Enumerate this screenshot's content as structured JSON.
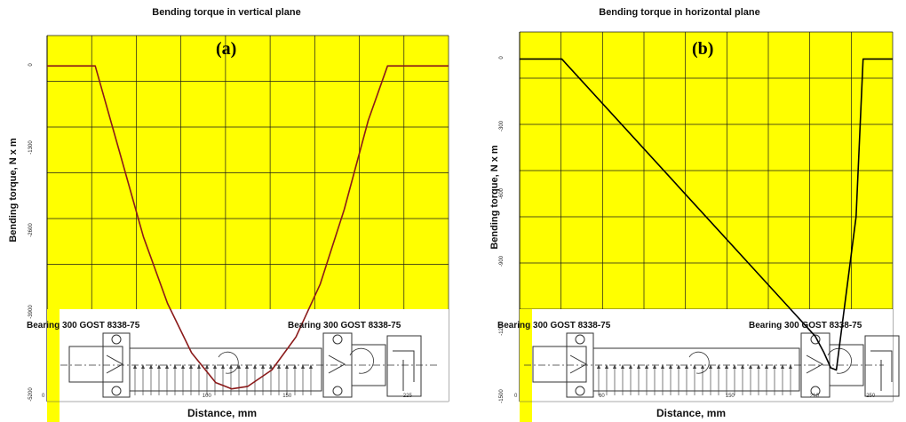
{
  "chart_data": [
    {
      "type": "line",
      "panel_tag": "(a)",
      "title": "Bending torque in vertical plane",
      "ylabel": "Bending torque, N x m",
      "xlabel": "Distance, mm",
      "y_ticks": [
        "0",
        "-1300",
        "-2600",
        "-3900",
        "-5200"
      ],
      "y_tick_values": [
        0,
        -1300,
        -2600,
        -3900,
        -5200
      ],
      "x_ticks": [
        "0",
        "100",
        "150",
        "225"
      ],
      "x_tick_values": [
        0,
        100,
        150,
        225
      ],
      "xlim": [
        0,
        250
      ],
      "ylim": [
        -5300,
        480
      ],
      "grid": true,
      "bearing_left": "Bearing 300 GOST 8338-75",
      "bearing_right": "Bearing 300 GOST 8338-75",
      "series": [
        {
          "color": "#8b1a1a",
          "x": [
            0,
            30,
            45,
            60,
            75,
            90,
            105,
            115,
            125,
            140,
            155,
            170,
            185,
            200,
            212,
            250
          ],
          "y": [
            0,
            0,
            -1350,
            -2700,
            -3750,
            -4530,
            -5000,
            -5100,
            -5060,
            -4800,
            -4280,
            -3450,
            -2270,
            -860,
            0,
            0
          ]
        }
      ]
    },
    {
      "type": "line",
      "panel_tag": "(b)",
      "title": "Bending torque in horizontal plane",
      "ylabel": "Bending torque, N x m",
      "xlabel": "Distance, mm",
      "y_ticks": [
        "0",
        "-300",
        "-600",
        "-900",
        "-1200",
        "-1500"
      ],
      "y_tick_values": [
        0,
        -300,
        -600,
        -900,
        -1200,
        -1500
      ],
      "x_ticks": [
        "0",
        "60",
        "150",
        "210",
        "250"
      ],
      "x_tick_values": [
        0,
        60,
        150,
        210,
        250
      ],
      "xlim": [
        0,
        265
      ],
      "ylim": [
        -1520,
        120
      ],
      "grid": true,
      "bearing_left": "Bearing 300 GOST 8338-75",
      "bearing_right": "Bearing 300 GOST 8338-75",
      "series": [
        {
          "color": "#000000",
          "x": [
            0,
            30,
            210,
            216,
            221,
            225,
            239,
            244,
            265
          ],
          "y": [
            0,
            0,
            -1230,
            -1300,
            -1370,
            -1380,
            -700,
            0,
            0
          ]
        }
      ]
    }
  ]
}
